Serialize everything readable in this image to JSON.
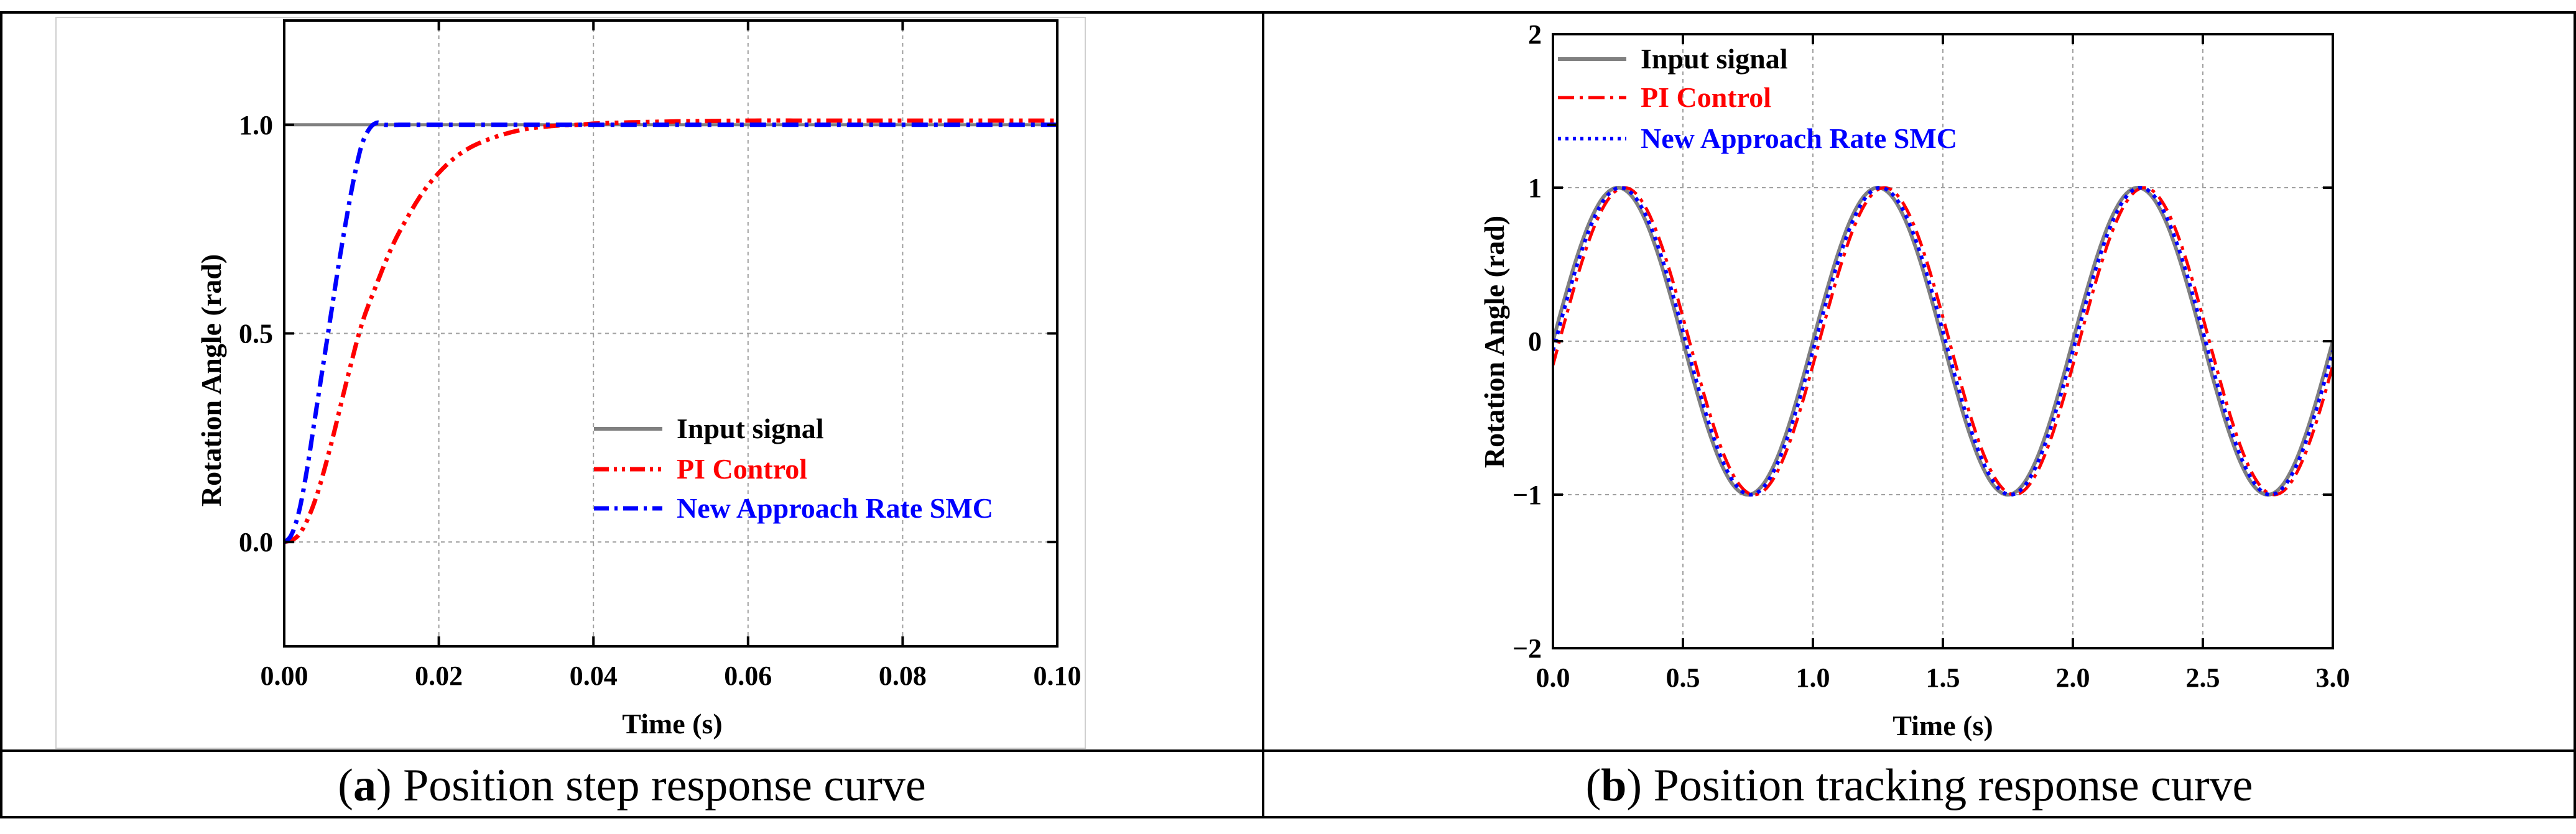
{
  "colors": {
    "input": "#808080",
    "pi": "#ff0000",
    "smc": "#0000ff",
    "grid": "#a0a0a0"
  },
  "captions": {
    "a": {
      "letter": "a",
      "text": " Position step response curve"
    },
    "b": {
      "letter": "b",
      "text": " Position tracking response curve"
    }
  },
  "chart_data": [
    {
      "id": "a",
      "type": "line",
      "xlabel": "Time (s)",
      "ylabel": "Rotation Angle (rad)",
      "xlim": [
        0,
        0.1
      ],
      "ylim": [
        -0.25,
        1.25
      ],
      "xticks": [
        0,
        0.02,
        0.04,
        0.06,
        0.08,
        0.1
      ],
      "xtick_labels": [
        "0.00",
        "0.02",
        "0.04",
        "0.06",
        "0.08",
        "0.10"
      ],
      "yticks": [
        0,
        0.5,
        1
      ],
      "ytick_labels": [
        "0.0",
        "0.5",
        "1.0"
      ],
      "grid": true,
      "legend_position": "center-right",
      "series": [
        {
          "name": "Input signal",
          "style": "solid",
          "color_key": "input",
          "x": [
            0,
            0.1
          ],
          "y": [
            1,
            1
          ]
        },
        {
          "name": "PI Control",
          "style": "dash-dot-dot",
          "color_key": "pi",
          "x": [
            0,
            0.002,
            0.004,
            0.006,
            0.008,
            0.01,
            0.012,
            0.014,
            0.016,
            0.018,
            0.02,
            0.022,
            0.024,
            0.026,
            0.028,
            0.03,
            0.032,
            0.034,
            0.036,
            0.038,
            0.04,
            0.045,
            0.05,
            0.06,
            0.07,
            0.08,
            0.09,
            0.1
          ],
          "y": [
            0,
            0.02,
            0.1,
            0.23,
            0.38,
            0.52,
            0.62,
            0.71,
            0.78,
            0.84,
            0.885,
            0.92,
            0.945,
            0.962,
            0.975,
            0.985,
            0.992,
            0.996,
            0.999,
            1.0,
            1.003,
            1.006,
            1.008,
            1.01,
            1.01,
            1.01,
            1.01,
            1.01
          ]
        },
        {
          "name": "New Approach Rate SMC",
          "style": "dash-dot",
          "color_key": "smc",
          "x": [
            0,
            0.001,
            0.002,
            0.003,
            0.004,
            0.005,
            0.006,
            0.007,
            0.008,
            0.009,
            0.01,
            0.011,
            0.012,
            0.013,
            0.015,
            0.02,
            0.03,
            0.05,
            0.1
          ],
          "y": [
            0,
            0.02,
            0.08,
            0.18,
            0.3,
            0.42,
            0.54,
            0.66,
            0.77,
            0.87,
            0.95,
            0.99,
            1.005,
            1.0,
            1.0,
            1.0,
            1.0,
            1.0,
            1.0
          ]
        }
      ]
    },
    {
      "id": "b",
      "type": "line",
      "xlabel": "Time (s)",
      "ylabel": "Rotation Angle (rad)",
      "xlim": [
        0,
        3
      ],
      "ylim": [
        -2,
        2
      ],
      "xticks": [
        0,
        0.5,
        1,
        1.5,
        2,
        2.5,
        3
      ],
      "xtick_labels": [
        "0.0",
        "0.5",
        "1.0",
        "1.5",
        "2.0",
        "2.5",
        "3.0"
      ],
      "yticks": [
        -2,
        -1,
        0,
        1,
        2
      ],
      "ytick_labels": [
        "−2",
        "−1",
        "0",
        "1",
        "2"
      ],
      "grid": true,
      "legend_position": "top-left",
      "series": [
        {
          "name": "Input signal",
          "style": "solid",
          "color_key": "input",
          "function": "sin",
          "amplitude": 1,
          "period": 1,
          "phase_lag": 0
        },
        {
          "name": "PI Control",
          "style": "dash-dot",
          "color_key": "pi",
          "function": "sin",
          "amplitude": 1,
          "period": 1,
          "phase_lag": 0.025
        },
        {
          "name": "New Approach Rate SMC",
          "style": "dotted",
          "color_key": "smc",
          "function": "sin",
          "amplitude": 1,
          "period": 1,
          "phase_lag": 0.01
        }
      ]
    }
  ]
}
